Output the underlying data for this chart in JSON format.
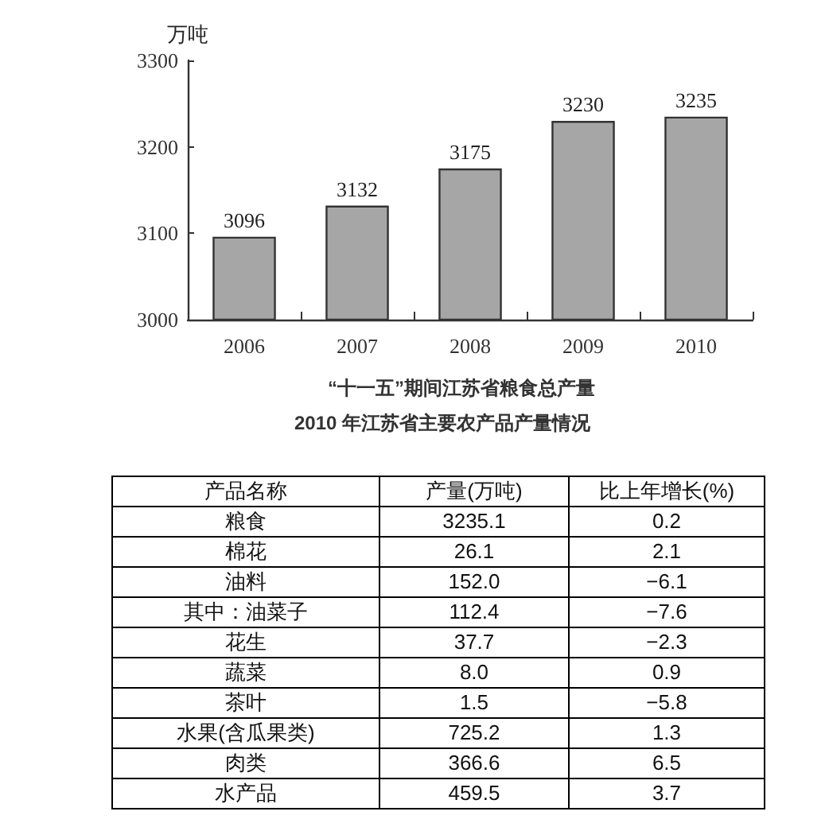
{
  "chart_data": [
    {
      "type": "bar",
      "title": "“十一五”期间江苏省粮食总产量",
      "ylabel": "万吨",
      "categories": [
        "2006",
        "2007",
        "2008",
        "2009",
        "2010"
      ],
      "values": [
        3096,
        3132,
        3175,
        3230,
        3235
      ],
      "color": "#a6a6a6",
      "ylim": [
        3000,
        3300
      ],
      "yticks": [
        3000,
        3100,
        3200,
        3300
      ],
      "data_labels": true
    },
    {
      "type": "other",
      "title": "2010 年江苏省主要农产品产量情况",
      "ylabel": "产品名称",
      "categories": [
        "粮食",
        "棉花",
        "油料",
        "其中：油菜子",
        "花生",
        "蔬菜",
        "茶叶",
        "水果(含瓜果类)",
        "肉类",
        "水产品"
      ],
      "series": [
        {
          "name": "产量(万吨)",
          "values": [
            3235.1,
            26.1,
            152.0,
            112.4,
            37.7,
            8.0,
            1.5,
            725.2,
            366.6,
            459.5
          ],
          "value_labels": [
            "3235.1",
            "26.1",
            "152.0",
            "112.4",
            "37.7",
            "8.0",
            "1.5",
            "725.2",
            "366.6",
            "459.5"
          ]
        },
        {
          "name": "比上年增长(%)",
          "values": [
            0.2,
            2.1,
            -6.1,
            -7.6,
            -2.3,
            0.9,
            -5.8,
            1.3,
            6.5,
            3.7
          ]
        }
      ],
      "data_labels": true
    }
  ]
}
